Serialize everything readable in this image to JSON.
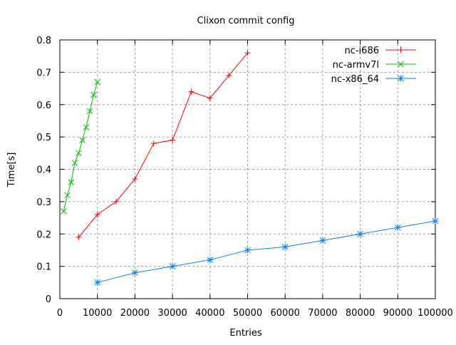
{
  "chart_data": {
    "type": "line",
    "title": "Clixon commit config",
    "xlabel": "Entries",
    "ylabel": "Time[s]",
    "xlim": [
      0,
      100000
    ],
    "ylim": [
      0,
      0.8
    ],
    "xticks": [
      0,
      10000,
      20000,
      30000,
      40000,
      50000,
      60000,
      70000,
      80000,
      90000,
      100000
    ],
    "yticks": [
      0,
      0.1,
      0.2,
      0.3,
      0.4,
      0.5,
      0.6,
      0.7,
      0.8
    ],
    "grid": true,
    "legend_position": "top-right",
    "series": [
      {
        "name": "nc-i686",
        "color": "#ff0000",
        "marker": "plus",
        "x": [
          5000,
          10000,
          15000,
          20000,
          25000,
          30000,
          35000,
          40000,
          45000,
          50000
        ],
        "y": [
          0.19,
          0.26,
          0.3,
          0.37,
          0.48,
          0.49,
          0.64,
          0.62,
          0.69,
          0.76
        ]
      },
      {
        "name": "nc-armv7l",
        "color": "#00c000",
        "marker": "cross",
        "x": [
          1000,
          2000,
          3000,
          4000,
          5000,
          6000,
          7000,
          8000,
          9000,
          10000
        ],
        "y": [
          0.27,
          0.32,
          0.36,
          0.42,
          0.45,
          0.49,
          0.53,
          0.58,
          0.63,
          0.67
        ]
      },
      {
        "name": "nc-x86_64",
        "color": "#0080ff",
        "marker": "star",
        "x": [
          10000,
          20000,
          30000,
          40000,
          50000,
          60000,
          70000,
          80000,
          90000,
          100000
        ],
        "y": [
          0.05,
          0.08,
          0.1,
          0.12,
          0.15,
          0.16,
          0.18,
          0.2,
          0.22,
          0.24
        ]
      }
    ]
  }
}
